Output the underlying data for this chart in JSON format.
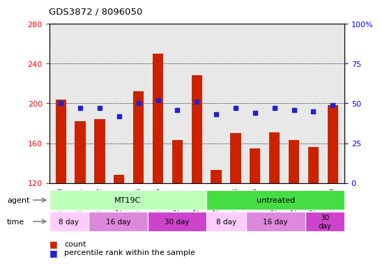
{
  "title": "GDS3872 / 8096050",
  "samples": [
    "GSM579080",
    "GSM579081",
    "GSM579082",
    "GSM579083",
    "GSM579084",
    "GSM579085",
    "GSM579086",
    "GSM579087",
    "GSM579073",
    "GSM579074",
    "GSM579075",
    "GSM579076",
    "GSM579077",
    "GSM579078",
    "GSM579079"
  ],
  "counts": [
    204,
    182,
    184,
    128,
    212,
    250,
    163,
    228,
    133,
    170,
    155,
    171,
    163,
    156,
    198
  ],
  "percentiles": [
    50,
    47,
    47,
    42,
    50,
    52,
    46,
    51,
    43,
    47,
    44,
    47,
    46,
    45,
    49
  ],
  "ylim_left": [
    120,
    280
  ],
  "ylim_right": [
    0,
    100
  ],
  "yticks_left": [
    120,
    160,
    200,
    240,
    280
  ],
  "yticks_right": [
    0,
    25,
    50,
    75,
    100
  ],
  "ytick_labels_right": [
    "0",
    "25",
    "50",
    "75",
    "100%"
  ],
  "bar_color": "#cc2200",
  "dot_color": "#2222cc",
  "plot_bg_color": "#e8e8e8",
  "agent_groups": [
    {
      "text": "MT19C",
      "start": 0,
      "end": 8,
      "color": "#bbffbb"
    },
    {
      "text": "untreated",
      "start": 8,
      "end": 15,
      "color": "#44dd44"
    }
  ],
  "time_groups": [
    {
      "text": "8 day",
      "start": 0,
      "end": 2,
      "color": "#ffccff"
    },
    {
      "text": "16 day",
      "start": 2,
      "end": 5,
      "color": "#dd88dd"
    },
    {
      "text": "30 day",
      "start": 5,
      "end": 8,
      "color": "#cc44cc"
    },
    {
      "text": "8 day",
      "start": 8,
      "end": 10,
      "color": "#ffccff"
    },
    {
      "text": "16 day",
      "start": 10,
      "end": 13,
      "color": "#dd88dd"
    },
    {
      "text": "30\nday",
      "start": 13,
      "end": 15,
      "color": "#cc44cc"
    }
  ],
  "n_samples": 15
}
